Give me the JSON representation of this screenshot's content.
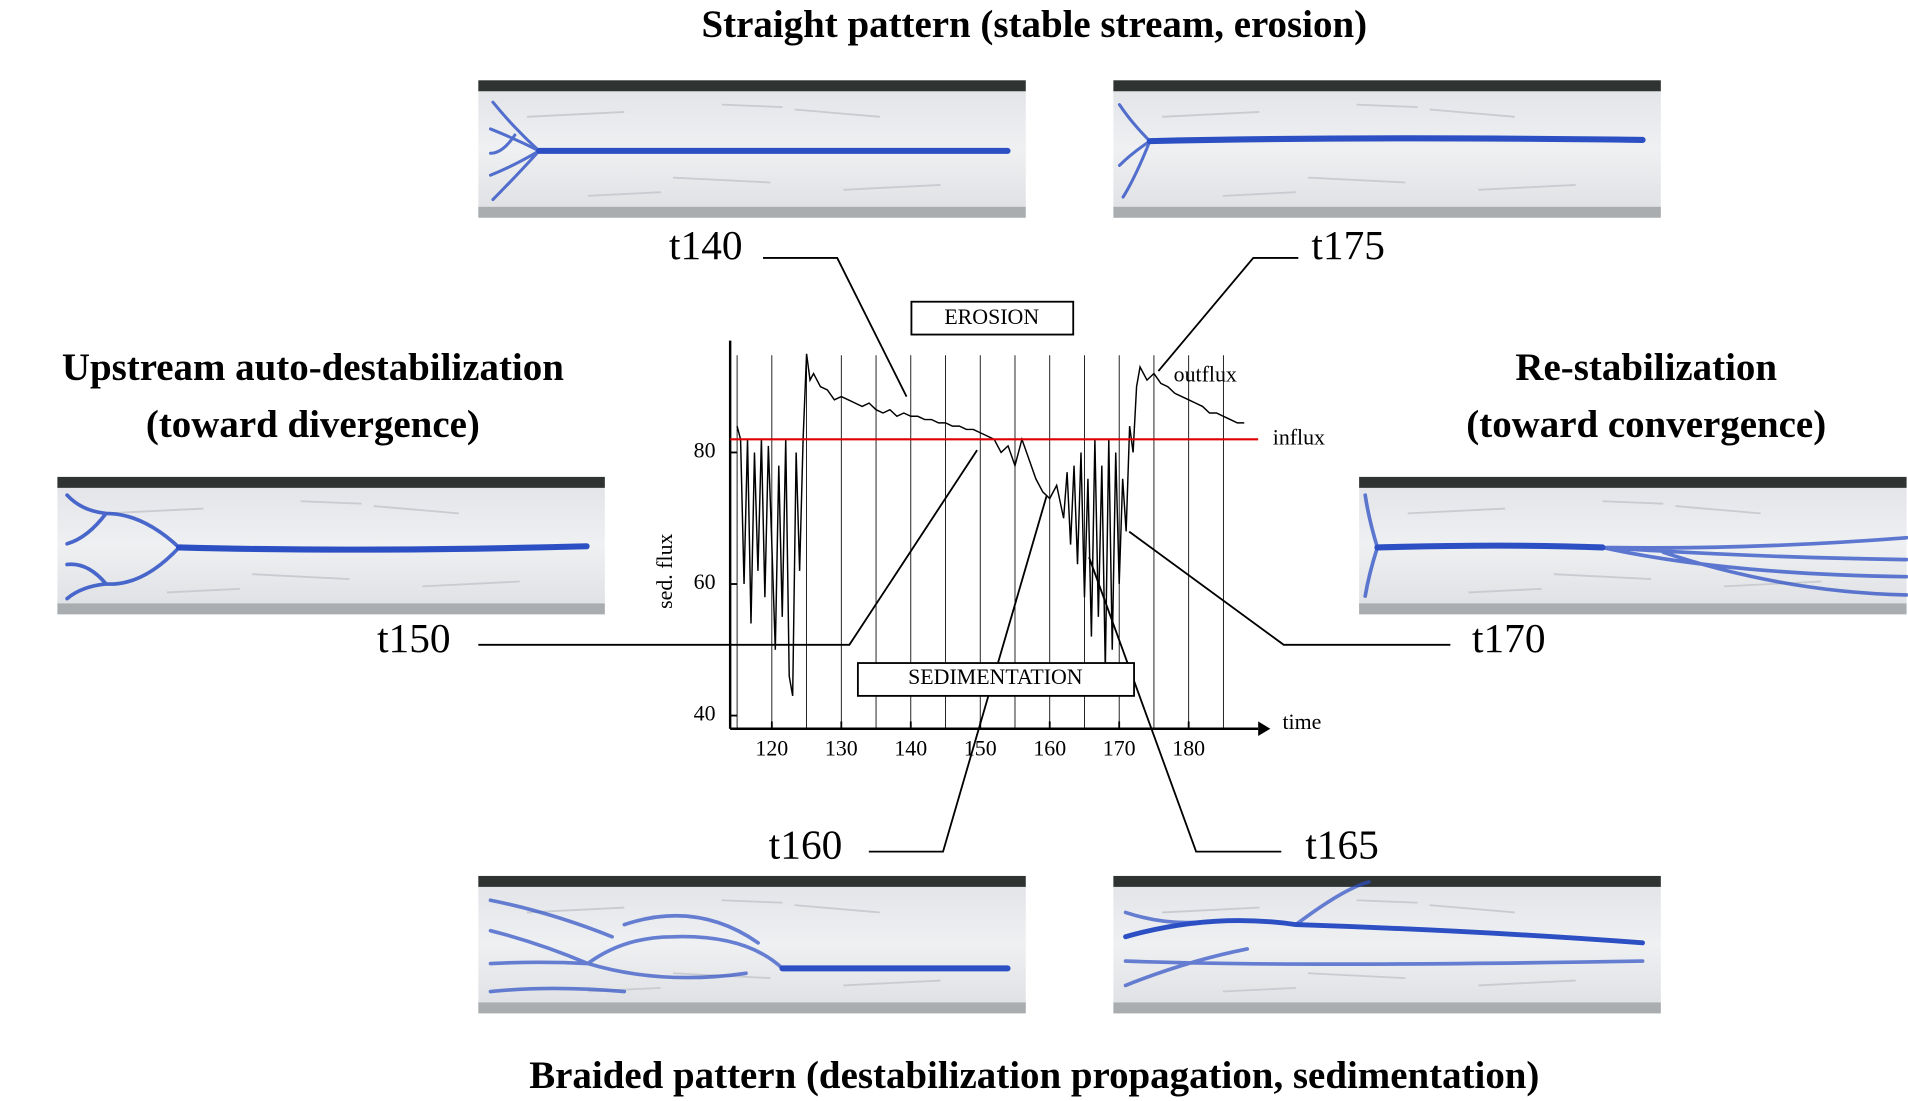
{
  "titles": {
    "top": "Straight pattern (stable stream, erosion)",
    "left": [
      "Upstream auto-destabilization",
      "(toward divergence)"
    ],
    "right": [
      "Re-stabilization",
      "(toward convergence)"
    ],
    "bottom": "Braided pattern (destabilization propagation, sedimentation)"
  },
  "time_labels": [
    "t140",
    "t175",
    "t150",
    "t170",
    "t160",
    "t165"
  ],
  "chart_data": {
    "type": "line",
    "x_label": "time",
    "y_label": "sed. flux",
    "annotations": [
      "EROSION",
      "SEDIMENTATION"
    ],
    "xlim": [
      114,
      190
    ],
    "ylim": [
      38,
      97
    ],
    "xticks": [
      120,
      130,
      140,
      150,
      160,
      170,
      180
    ],
    "yticks": [
      40,
      60,
      80
    ],
    "xgrid": [
      115,
      120,
      125,
      130,
      135,
      140,
      145,
      150,
      155,
      160,
      165,
      170,
      175,
      180,
      185
    ],
    "series": [
      {
        "name": "outflux",
        "color": "#000000",
        "x": [
          115,
          115.5,
          116,
          116.5,
          117,
          117.5,
          118,
          118.5,
          119,
          119.5,
          120,
          120.5,
          121,
          121.5,
          122,
          122.5,
          123,
          123.5,
          124,
          124.5,
          125,
          125.5,
          126,
          127,
          128,
          129,
          130,
          131,
          132,
          133,
          134,
          135,
          136,
          137,
          138,
          139,
          140,
          141,
          142,
          143,
          144,
          145,
          146,
          147,
          148,
          149,
          150,
          151,
          152,
          153,
          154,
          155,
          156,
          157,
          158,
          159,
          160,
          161,
          162,
          162.5,
          163,
          163.5,
          164,
          164.5,
          165,
          165.5,
          166,
          166.5,
          167,
          167.5,
          168,
          168.5,
          169,
          169.5,
          170,
          170.5,
          171,
          171.5,
          172,
          172.5,
          173,
          174,
          175,
          176,
          177,
          178,
          179,
          180,
          181,
          182,
          183,
          184,
          185,
          186,
          187,
          188
        ],
        "values": [
          84,
          82,
          60,
          82,
          54,
          80,
          62,
          82,
          58,
          81,
          66,
          50,
          78,
          55,
          82,
          46,
          43,
          80,
          62,
          82,
          95,
          91,
          92,
          90,
          89.5,
          88,
          88.5,
          88,
          87.5,
          87,
          87.5,
          86.5,
          86,
          86.5,
          85.5,
          86,
          85.5,
          85.5,
          85,
          85,
          84.5,
          84.5,
          84,
          84,
          83.5,
          83.5,
          83,
          82.5,
          82,
          80,
          81,
          78,
          82,
          79,
          76,
          74,
          73,
          75,
          70,
          77,
          66,
          78,
          63,
          80,
          58,
          76,
          52,
          82,
          55,
          78,
          47,
          82,
          50,
          80,
          60,
          76,
          68,
          84,
          80,
          90,
          93,
          91,
          92,
          90.5,
          90,
          89,
          88.5,
          88,
          87.5,
          87,
          86,
          86,
          85.5,
          85,
          84.5,
          84.5
        ]
      },
      {
        "name": "influx",
        "color": "#e00000",
        "x": [
          114,
          190
        ],
        "values": [
          82,
          82
        ]
      }
    ]
  }
}
